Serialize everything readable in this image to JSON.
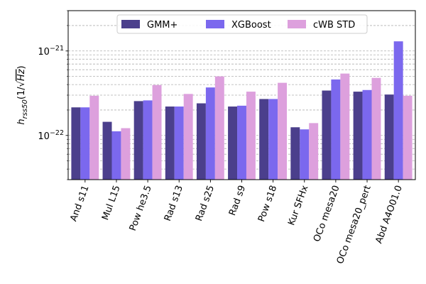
{
  "chart_data": {
    "type": "bar",
    "title": "",
    "xlabel": "",
    "ylabel": "h_rss50(1/√Hz)",
    "ylabel_parts": {
      "main": "h",
      "sub": "rss50",
      "open": "(1/",
      "radicand": "Hz",
      "close": ")"
    },
    "yscale": "log",
    "ylim": [
      3e-23,
      3e-21
    ],
    "yticks": [
      {
        "value": 1e-22,
        "label": "10",
        "exp": "−22"
      },
      {
        "value": 1e-21,
        "label": "10",
        "exp": "−21"
      }
    ],
    "grid": "horizontal-dashed",
    "legend_position": "top-center",
    "categories": [
      "And s11",
      "Mul L15",
      "Pow he3.5",
      "Rad s13",
      "Rad s25",
      "Rad s9",
      "Pow s18",
      "Kur SFHx",
      "OCo mesa20",
      "OCo mesa20_pert",
      "Abd A4O01.0"
    ],
    "series": [
      {
        "name": "GMM+",
        "color": "#4b3f8c",
        "values": [
          2.15e-22,
          1.45e-22,
          2.55e-22,
          2.2e-22,
          2.4e-22,
          2.2e-22,
          2.7e-22,
          1.25e-22,
          3.4e-22,
          3.3e-22,
          3.05e-22
        ]
      },
      {
        "name": "XGBoost",
        "color": "#7b68ee",
        "values": [
          2.15e-22,
          1.12e-22,
          2.6e-22,
          2.2e-22,
          3.7e-22,
          2.25e-22,
          2.7e-22,
          1.18e-22,
          4.6e-22,
          3.45e-22,
          1.3e-21
        ]
      },
      {
        "name": "cWB STD",
        "color": "#dda0dd",
        "values": [
          2.95e-22,
          1.22e-22,
          3.95e-22,
          3.1e-22,
          5e-22,
          3.3e-22,
          4.2e-22,
          1.4e-22,
          5.4e-22,
          4.8e-22,
          2.95e-22
        ]
      }
    ]
  }
}
